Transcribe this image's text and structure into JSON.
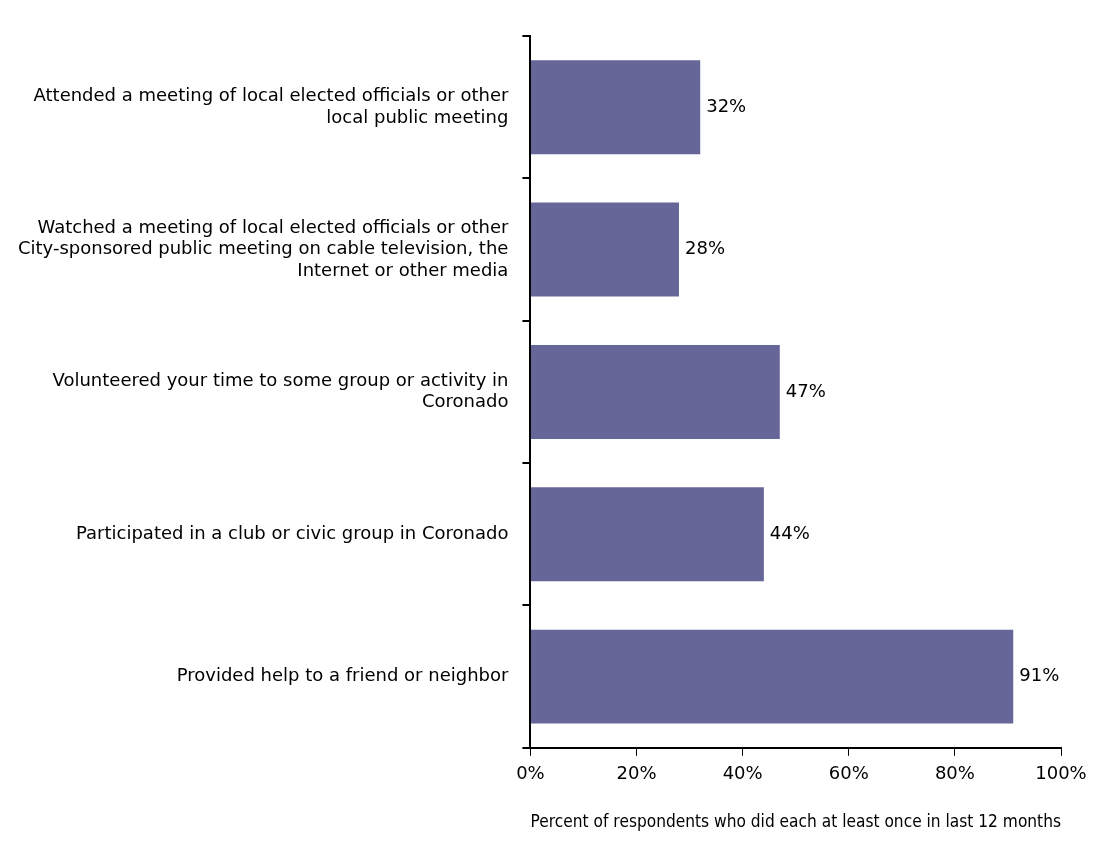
{
  "chart_data": {
    "type": "bar",
    "orientation": "horizontal",
    "categories": [
      "Attended a meeting of local elected officials or other local public meeting",
      "Watched a meeting of local elected officials or other City-sponsored public meeting on cable television, the Internet or other media",
      "Volunteered your time to some group or activity in Coronado",
      "Participated in a club or civic group in Coronado",
      "Provided help to a friend or neighbor"
    ],
    "values": [
      32,
      28,
      47,
      44,
      91
    ],
    "value_labels": [
      "32%",
      "28%",
      "47%",
      "44%",
      "91%"
    ],
    "color": "#666699",
    "xlim": [
      0,
      100
    ],
    "xticks": [
      {
        "value": 0,
        "label": "0%"
      },
      {
        "value": 20,
        "label": "20%"
      },
      {
        "value": 40,
        "label": "40%"
      },
      {
        "value": 60,
        "label": "60%"
      },
      {
        "value": 80,
        "label": "80%"
      },
      {
        "value": 100,
        "label": "100%"
      }
    ],
    "xlabel": "Percent of respondents who did each at least once in last 12 months",
    "grid": false,
    "legend": false
  }
}
